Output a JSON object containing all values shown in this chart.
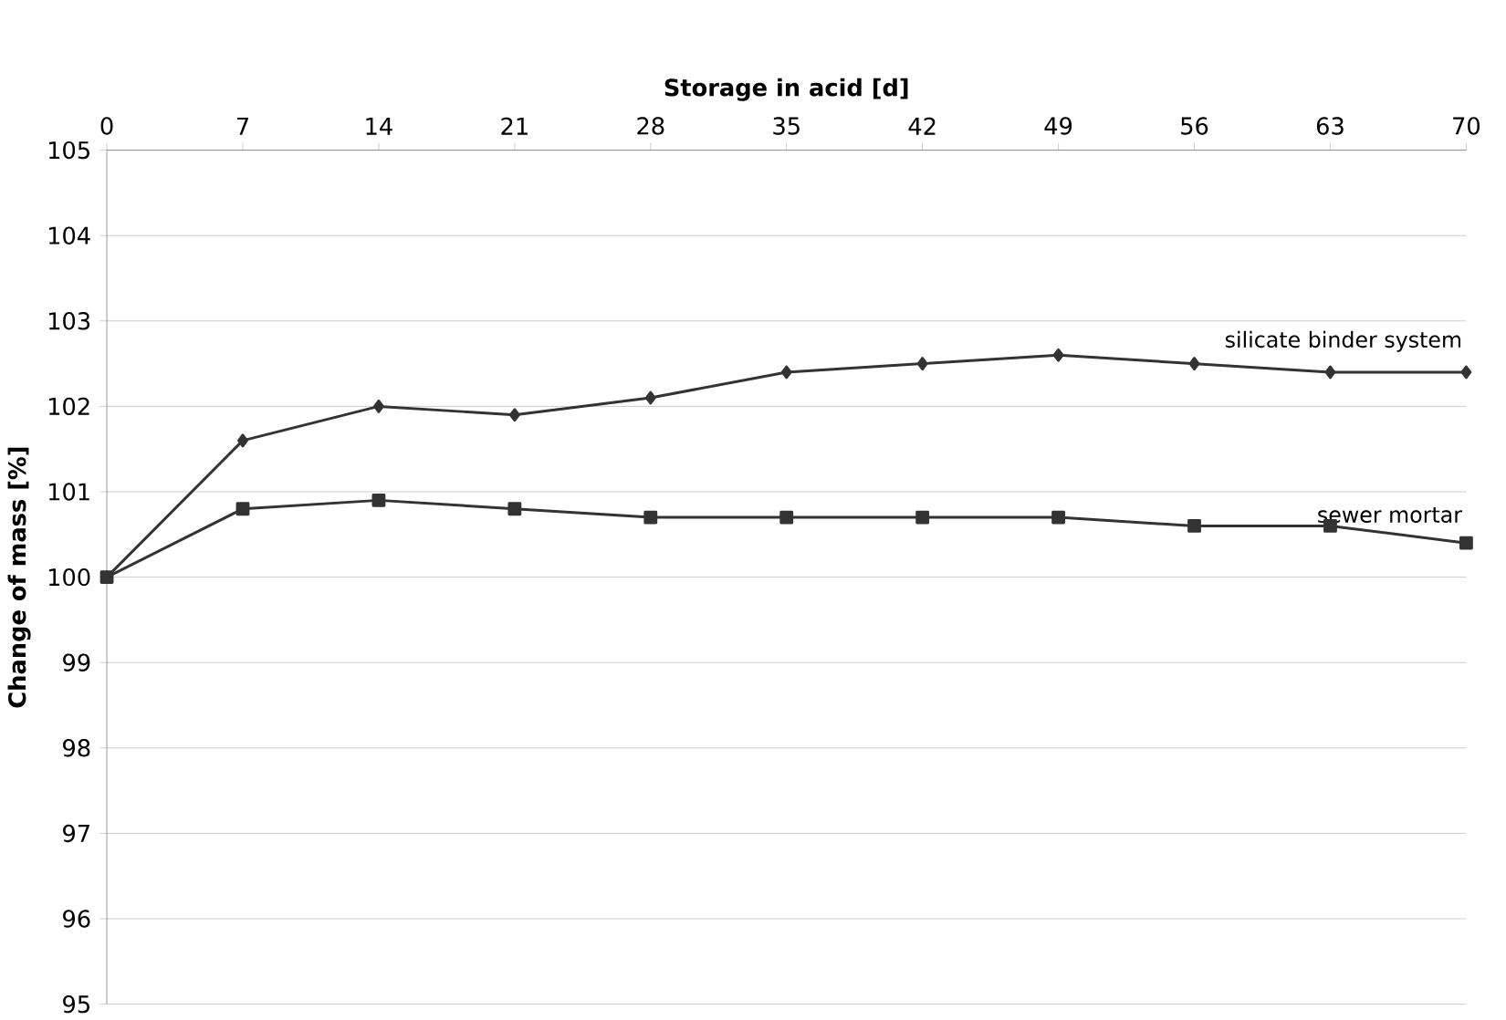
{
  "chart_data": {
    "type": "line",
    "xlabel": "Storage in acid [d]",
    "ylabel": "Change of mass [%]",
    "x": [
      0,
      7,
      14,
      21,
      28,
      35,
      42,
      49,
      56,
      63,
      70
    ],
    "xlim": [
      0,
      70
    ],
    "xticks": [
      0,
      7,
      14,
      21,
      28,
      35,
      42,
      49,
      56,
      63,
      70
    ],
    "ylim": [
      95,
      105
    ],
    "yticks": [
      95,
      96,
      97,
      98,
      99,
      100,
      101,
      102,
      103,
      104,
      105
    ],
    "grid": "y",
    "series": [
      {
        "name": "silicate binder system",
        "color": "#333333",
        "marker": "diamond",
        "values": [
          100,
          101.6,
          102.0,
          101.9,
          102.1,
          102.4,
          102.5,
          102.6,
          102.5,
          102.4,
          102.4
        ]
      },
      {
        "name": "sewer mortar",
        "color": "#333333",
        "marker": "square",
        "values": [
          100,
          100.8,
          100.9,
          100.8,
          100.7,
          100.7,
          100.7,
          100.7,
          100.6,
          100.6,
          100.4
        ]
      }
    ]
  }
}
